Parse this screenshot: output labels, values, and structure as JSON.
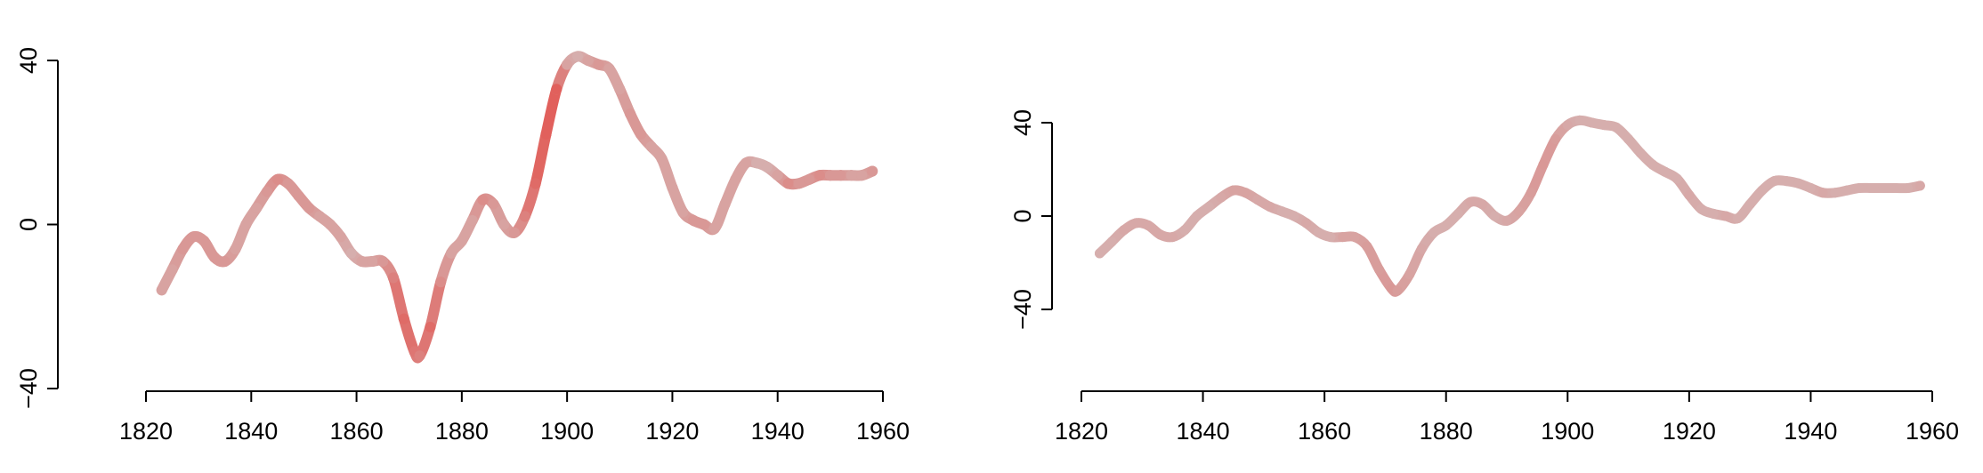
{
  "chart_data": [
    {
      "type": "line",
      "title": "",
      "xlabel": "",
      "ylabel": "",
      "xlim": [
        1822,
        1960
      ],
      "ylim": [
        -40,
        40
      ],
      "x_ticks": [
        "1820",
        "1840",
        "1860",
        "1880",
        "1900",
        "1920",
        "1940",
        "1960"
      ],
      "y_ticks": [
        "-40",
        "0",
        "40"
      ],
      "grid": false,
      "legend": "none",
      "color_low": "#d3c4c4",
      "color_high": "#e25550",
      "series": [
        {
          "x": [
            1823,
            1825,
            1827,
            1829,
            1831,
            1833,
            1835,
            1837,
            1839,
            1841,
            1843,
            1845,
            1847,
            1849,
            1851,
            1853,
            1855,
            1857,
            1859,
            1861,
            1863,
            1865,
            1867,
            1869,
            1871,
            1872,
            1874,
            1876,
            1878,
            1880,
            1882,
            1884,
            1886,
            1888,
            1890,
            1892,
            1894,
            1896,
            1898,
            1900,
            1902,
            1904,
            1906,
            1908,
            1910,
            1912,
            1914,
            1916,
            1918,
            1920,
            1922,
            1924,
            1926,
            1928,
            1930,
            1932,
            1934,
            1936,
            1938,
            1940,
            1942,
            1944,
            1946,
            1948,
            1950,
            1952,
            1954,
            1956,
            1958
          ],
          "values": [
            -16,
            -11,
            -6,
            -3,
            -4,
            -8,
            -9,
            -6,
            0,
            4,
            8,
            11,
            10,
            7,
            4,
            2,
            0,
            -3,
            -7,
            -9,
            -9,
            -9,
            -13,
            -23,
            -31,
            -32,
            -25,
            -14,
            -7,
            -4,
            1,
            6,
            5,
            0,
            -2,
            2,
            10,
            22,
            33,
            39,
            41,
            40,
            39,
            38,
            33,
            27,
            22,
            19,
            16,
            9,
            3,
            1,
            0,
            -1,
            5,
            11,
            15,
            15,
            14,
            12,
            10,
            10,
            11,
            12,
            12,
            12,
            12,
            12,
            13
          ],
          "intensity": [
            0.3,
            0.3,
            0.4,
            0.4,
            0.4,
            0.4,
            0.4,
            0.3,
            0.3,
            0.3,
            0.4,
            0.5,
            0.4,
            0.4,
            0.4,
            0.3,
            0.3,
            0.3,
            0.2,
            0.3,
            0.3,
            0.4,
            0.6,
            0.8,
            0.7,
            0.6,
            0.8,
            0.5,
            0.3,
            0.3,
            0.3,
            0.5,
            0.4,
            0.3,
            0.4,
            0.6,
            0.8,
            0.9,
            0.9,
            0.3,
            0.2,
            0.3,
            0.4,
            0.3,
            0.3,
            0.4,
            0.4,
            0.3,
            0.3,
            0.3,
            0.3,
            0.4,
            0.4,
            0.3,
            0.3,
            0.3,
            0.3,
            0.2,
            0.2,
            0.3,
            0.5,
            0.4,
            0.4,
            0.5,
            0.4,
            0.4,
            0.3,
            0.3,
            0.4
          ]
        }
      ]
    },
    {
      "type": "line",
      "title": "",
      "xlabel": "",
      "ylabel": "",
      "xlim": [
        1822,
        1960
      ],
      "ylim": [
        -40,
        40
      ],
      "x_ticks": [
        "1820",
        "1840",
        "1860",
        "1880",
        "1900",
        "1920",
        "1940",
        "1960"
      ],
      "y_ticks": [
        "-40",
        "0",
        "40"
      ],
      "grid": false,
      "legend": "none",
      "color_low": "#d3c4c4",
      "color_high": "#e25550",
      "series": [
        {
          "x": [
            1823,
            1825,
            1827,
            1829,
            1831,
            1833,
            1835,
            1837,
            1839,
            1841,
            1843,
            1845,
            1847,
            1849,
            1851,
            1853,
            1855,
            1857,
            1859,
            1861,
            1863,
            1865,
            1867,
            1869,
            1871,
            1872,
            1874,
            1876,
            1878,
            1880,
            1882,
            1884,
            1886,
            1888,
            1890,
            1892,
            1894,
            1896,
            1898,
            1900,
            1902,
            1904,
            1906,
            1908,
            1910,
            1912,
            1914,
            1916,
            1918,
            1920,
            1922,
            1924,
            1926,
            1928,
            1930,
            1932,
            1934,
            1936,
            1938,
            1940,
            1942,
            1944,
            1946,
            1948,
            1950,
            1952,
            1954,
            1956,
            1958
          ],
          "values": [
            -16,
            -11,
            -6,
            -3,
            -4,
            -8,
            -9,
            -6,
            0,
            4,
            8,
            11,
            10,
            7,
            4,
            2,
            0,
            -3,
            -7,
            -9,
            -9,
            -9,
            -13,
            -23,
            -31,
            -32,
            -25,
            -14,
            -7,
            -4,
            1,
            6,
            5,
            0,
            -2,
            2,
            10,
            22,
            33,
            39,
            41,
            40,
            39,
            38,
            33,
            27,
            22,
            19,
            16,
            9,
            3,
            1,
            0,
            -1,
            5,
            11,
            15,
            15,
            14,
            12,
            10,
            10,
            11,
            12,
            12,
            12,
            12,
            12,
            13
          ],
          "intensity": [
            0.2,
            0.2,
            0.25,
            0.25,
            0.25,
            0.25,
            0.25,
            0.2,
            0.2,
            0.2,
            0.25,
            0.3,
            0.3,
            0.25,
            0.25,
            0.2,
            0.2,
            0.25,
            0.2,
            0.2,
            0.3,
            0.3,
            0.35,
            0.35,
            0.4,
            0.35,
            0.3,
            0.25,
            0.2,
            0.2,
            0.2,
            0.25,
            0.25,
            0.2,
            0.25,
            0.3,
            0.35,
            0.4,
            0.35,
            0.25,
            0.2,
            0.2,
            0.2,
            0.2,
            0.2,
            0.2,
            0.2,
            0.2,
            0.2,
            0.25,
            0.2,
            0.2,
            0.25,
            0.2,
            0.2,
            0.2,
            0.2,
            0.2,
            0.2,
            0.2,
            0.25,
            0.2,
            0.2,
            0.2,
            0.2,
            0.2,
            0.2,
            0.2,
            0.25
          ]
        }
      ]
    }
  ]
}
